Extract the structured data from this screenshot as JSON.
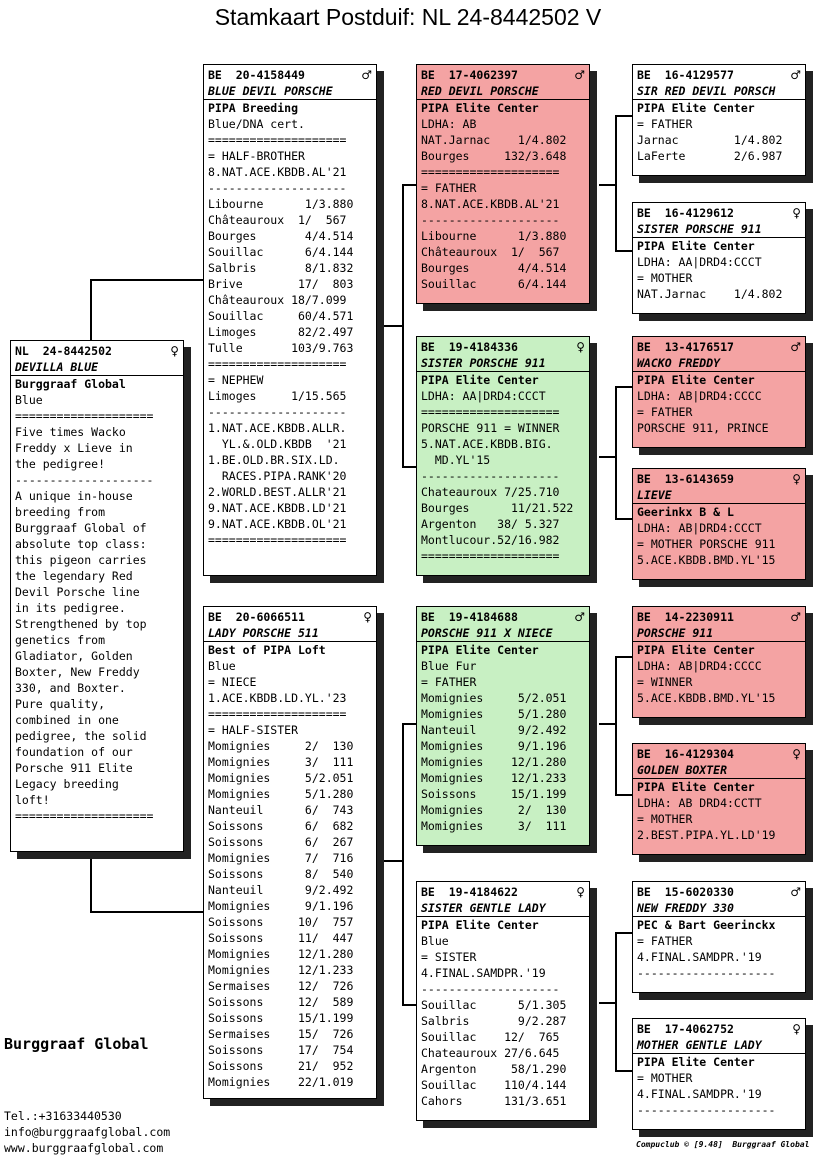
{
  "title": "Stamkaart Postduif: NL  24-8442502 V",
  "cards": [
    {
      "ring": "NL  24-8442502",
      "sex": "♀",
      "name": "DEVILLA BLUE",
      "owner": "Burggraaf Global",
      "color": "white",
      "lines": [
        "Blue",
        "====================",
        "Five times Wacko",
        "Freddy x Lieve in",
        "the pedigree!",
        "--------------------",
        "A unique in-house",
        "breeding from",
        "Burggraaf Global of",
        "absolute top class:",
        "this pigeon carries",
        "the legendary Red",
        "Devil Porsche line",
        "in its pedigree.",
        "Strengthened by top",
        "genetics from",
        "Gladiator, Golden",
        "Boxter, New Freddy",
        "330, and Boxter.",
        "Pure quality,",
        "combined in one",
        "pedigree, the solid",
        "foundation of our",
        "Porsche 911 Elite",
        "Legacy breeding",
        "loft!",
        "===================="
      ]
    },
    {
      "ring": "BE  20-4158449",
      "sex": "♂",
      "name": "BLUE DEVIL PORSCHE",
      "owner": "PIPA Breeding",
      "color": "white",
      "lines": [
        "Blue/DNA cert.",
        "====================",
        "= HALF-BROTHER",
        "8.NAT.ACE.KBDB.AL'21",
        "--------------------",
        "Libourne      1/3.880",
        "Châteauroux  1/  567",
        "Bourges       4/4.514",
        "Souillac      6/4.144",
        "Salbris       8/1.832",
        "Brive        17/  803",
        "Châteauroux 18/7.099",
        "Souillac     60/4.571",
        "Limoges      82/2.497",
        "Tulle       103/9.763",
        "====================",
        "= NEPHEW",
        "Limoges     1/15.565",
        "--------------------",
        "1.NAT.ACE.KBDB.ALLR.",
        "  YL.&.OLD.KBDB  '21",
        "1.BE.OLD.BR.SIX.LD.",
        "  RACES.PIPA.RANK'20",
        "2.WORLD.BEST.ALLR'21",
        "9.NAT.ACE.KBDB.LD'21",
        "9.NAT.ACE.KBDB.OL'21",
        "===================="
      ]
    },
    {
      "ring": "BE  20-6066511",
      "sex": "♀",
      "name": "LADY PORSCHE 511",
      "owner": "Best of PIPA Loft",
      "color": "white",
      "lines": [
        "Blue",
        "= NIECE",
        "1.ACE.KBDB.LD.YL.'23",
        "====================",
        "= HALF-SISTER",
        "Momignies     2/  130",
        "Momignies     3/  111",
        "Momignies     5/2.051",
        "Momignies     5/1.280",
        "Nanteuil      6/  743",
        "Soissons      6/  682",
        "Soissons      6/  267",
        "Momignies     7/  716",
        "Soissons      8/  540",
        "Nanteuil      9/2.492",
        "Momignies     9/1.196",
        "Soissons     10/  757",
        "Soissons     11/  447",
        "Momignies    12/1.280",
        "Momignies    12/1.233",
        "Sermaises    12/  726",
        "Soissons     12/  589",
        "Soissons     15/1.199",
        "Sermaises    15/  726",
        "Soissons     17/  754",
        "Soissons     21/  952",
        "Momignies    22/1.019"
      ]
    },
    {
      "ring": "BE  17-4062397",
      "sex": "♂",
      "name": "RED DEVIL PORSCHE",
      "owner": "PIPA Elite Center",
      "color": "red",
      "lines": [
        "LDHA: AB",
        "NAT.Jarnac    1/4.802",
        "Bourges     132/3.648",
        "====================",
        "= FATHER",
        "8.NAT.ACE.KBDB.AL'21",
        "--------------------",
        "Libourne      1/3.880",
        "Châteauroux  1/  567",
        "Bourges       4/4.514",
        "Souillac      6/4.144"
      ]
    },
    {
      "ring": "BE  19-4184336",
      "sex": "♀",
      "name": "SISTER PORSCHE 911",
      "owner": "PIPA Elite Center",
      "color": "green",
      "lines": [
        "LDHA: AA|DRD4:CCCT",
        "====================",
        "PORSCHE 911 = WINNER",
        "5.NAT.ACE.KBDB.BIG.",
        "  MD.YL'15",
        "--------------------",
        "Chateauroux 7/25.710",
        "Bourges      11/21.522",
        "Argenton   38/ 5.327",
        "Montlucour.52/16.982",
        "===================="
      ]
    },
    {
      "ring": "BE  19-4184688",
      "sex": "♂",
      "name": "PORSCHE 911 X NIECE",
      "owner": "PIPA Elite Center",
      "color": "green",
      "lines": [
        "Blue Fur",
        "= FATHER",
        "Momignies     5/2.051",
        "Momignies     5/1.280",
        "Nanteuil      9/2.492",
        "Momignies     9/1.196",
        "Momignies    12/1.280",
        "Momignies    12/1.233",
        "Soissons     15/1.199",
        "Momignies     2/  130",
        "Momignies     3/  111"
      ]
    },
    {
      "ring": "BE  19-4184622",
      "sex": "♀",
      "name": "SISTER GENTLE LADY",
      "owner": "PIPA Elite Center",
      "color": "white",
      "lines": [
        "Blue",
        "= SISTER",
        "4.FINAL.SAMDPR.'19",
        "--------------------",
        "Souillac      5/1.305",
        "Salbris       9/2.287",
        "Souillac    12/  765",
        "Chateauroux 27/6.645",
        "Argenton     58/1.290",
        "Souillac    110/4.144",
        "Cahors      131/3.651"
      ]
    },
    {
      "ring": "BE  16-4129577",
      "sex": "♂",
      "name": "SIR RED DEVIL PORSCH",
      "owner": "PIPA Elite Center",
      "color": "white",
      "lines": [
        "= FATHER",
        "Jarnac        1/4.802",
        "LaFerte       2/6.987"
      ]
    },
    {
      "ring": "BE  16-4129612",
      "sex": "♀",
      "name": "SISTER PORSCHE 911",
      "owner": "PIPA Elite Center",
      "color": "white",
      "lines": [
        "LDHA: AA|DRD4:CCCT",
        "= MOTHER",
        "NAT.Jarnac    1/4.802"
      ]
    },
    {
      "ring": "BE  13-4176517",
      "sex": "♂",
      "name": "WACKO FREDDY",
      "owner": "PIPA Elite Center",
      "color": "red",
      "lines": [
        "LDHA: AB|DRD4:CCCC",
        "= FATHER",
        "PORSCHE 911, PRINCE"
      ]
    },
    {
      "ring": "BE  13-6143659",
      "sex": "♀",
      "name": "LIEVE",
      "owner": "Geerinkx B & L",
      "color": "red",
      "lines": [
        "LDHA: AB|DRD4:CCCT",
        "= MOTHER PORSCHE 911",
        "5.ACE.KBDB.BMD.YL'15"
      ]
    },
    {
      "ring": "BE  14-2230911",
      "sex": "♂",
      "name": "PORSCHE 911",
      "owner": "PIPA Elite Center",
      "color": "red",
      "lines": [
        "LDHA: AB|DRD4:CCCC",
        "= WINNER",
        "5.ACE.KBDB.BMD.YL'15"
      ]
    },
    {
      "ring": "BE  16-4129304",
      "sex": "♀",
      "name": "GOLDEN BOXTER",
      "owner": "PIPA Elite Center",
      "color": "red",
      "lines": [
        "LDHA: AB DRD4:CCTT",
        "= MOTHER",
        "2.BEST.PIPA.YL.LD'19"
      ]
    },
    {
      "ring": "BE  15-6020330",
      "sex": "♂",
      "name": "NEW FREDDY 330",
      "owner": "PEC & Bart Geerinckx",
      "color": "white",
      "lines": [
        "= FATHER",
        "4.FINAL.SAMDPR.'19",
        "--------------------"
      ]
    },
    {
      "ring": "BE  17-4062752",
      "sex": "♀",
      "name": "MOTHER GENTLE LADY",
      "owner": "PIPA Elite Center",
      "color": "white",
      "lines": [
        "= MOTHER",
        "4.FINAL.SAMDPR.'19",
        "--------------------"
      ]
    }
  ],
  "brand": "Burggraaf Global",
  "contact": [
    "Tel.:+31633440530",
    "info@burggraafglobal.com",
    "www.burggraafglobal.com"
  ],
  "footer": "Compuclub © [9.48]  Burggraaf Global"
}
